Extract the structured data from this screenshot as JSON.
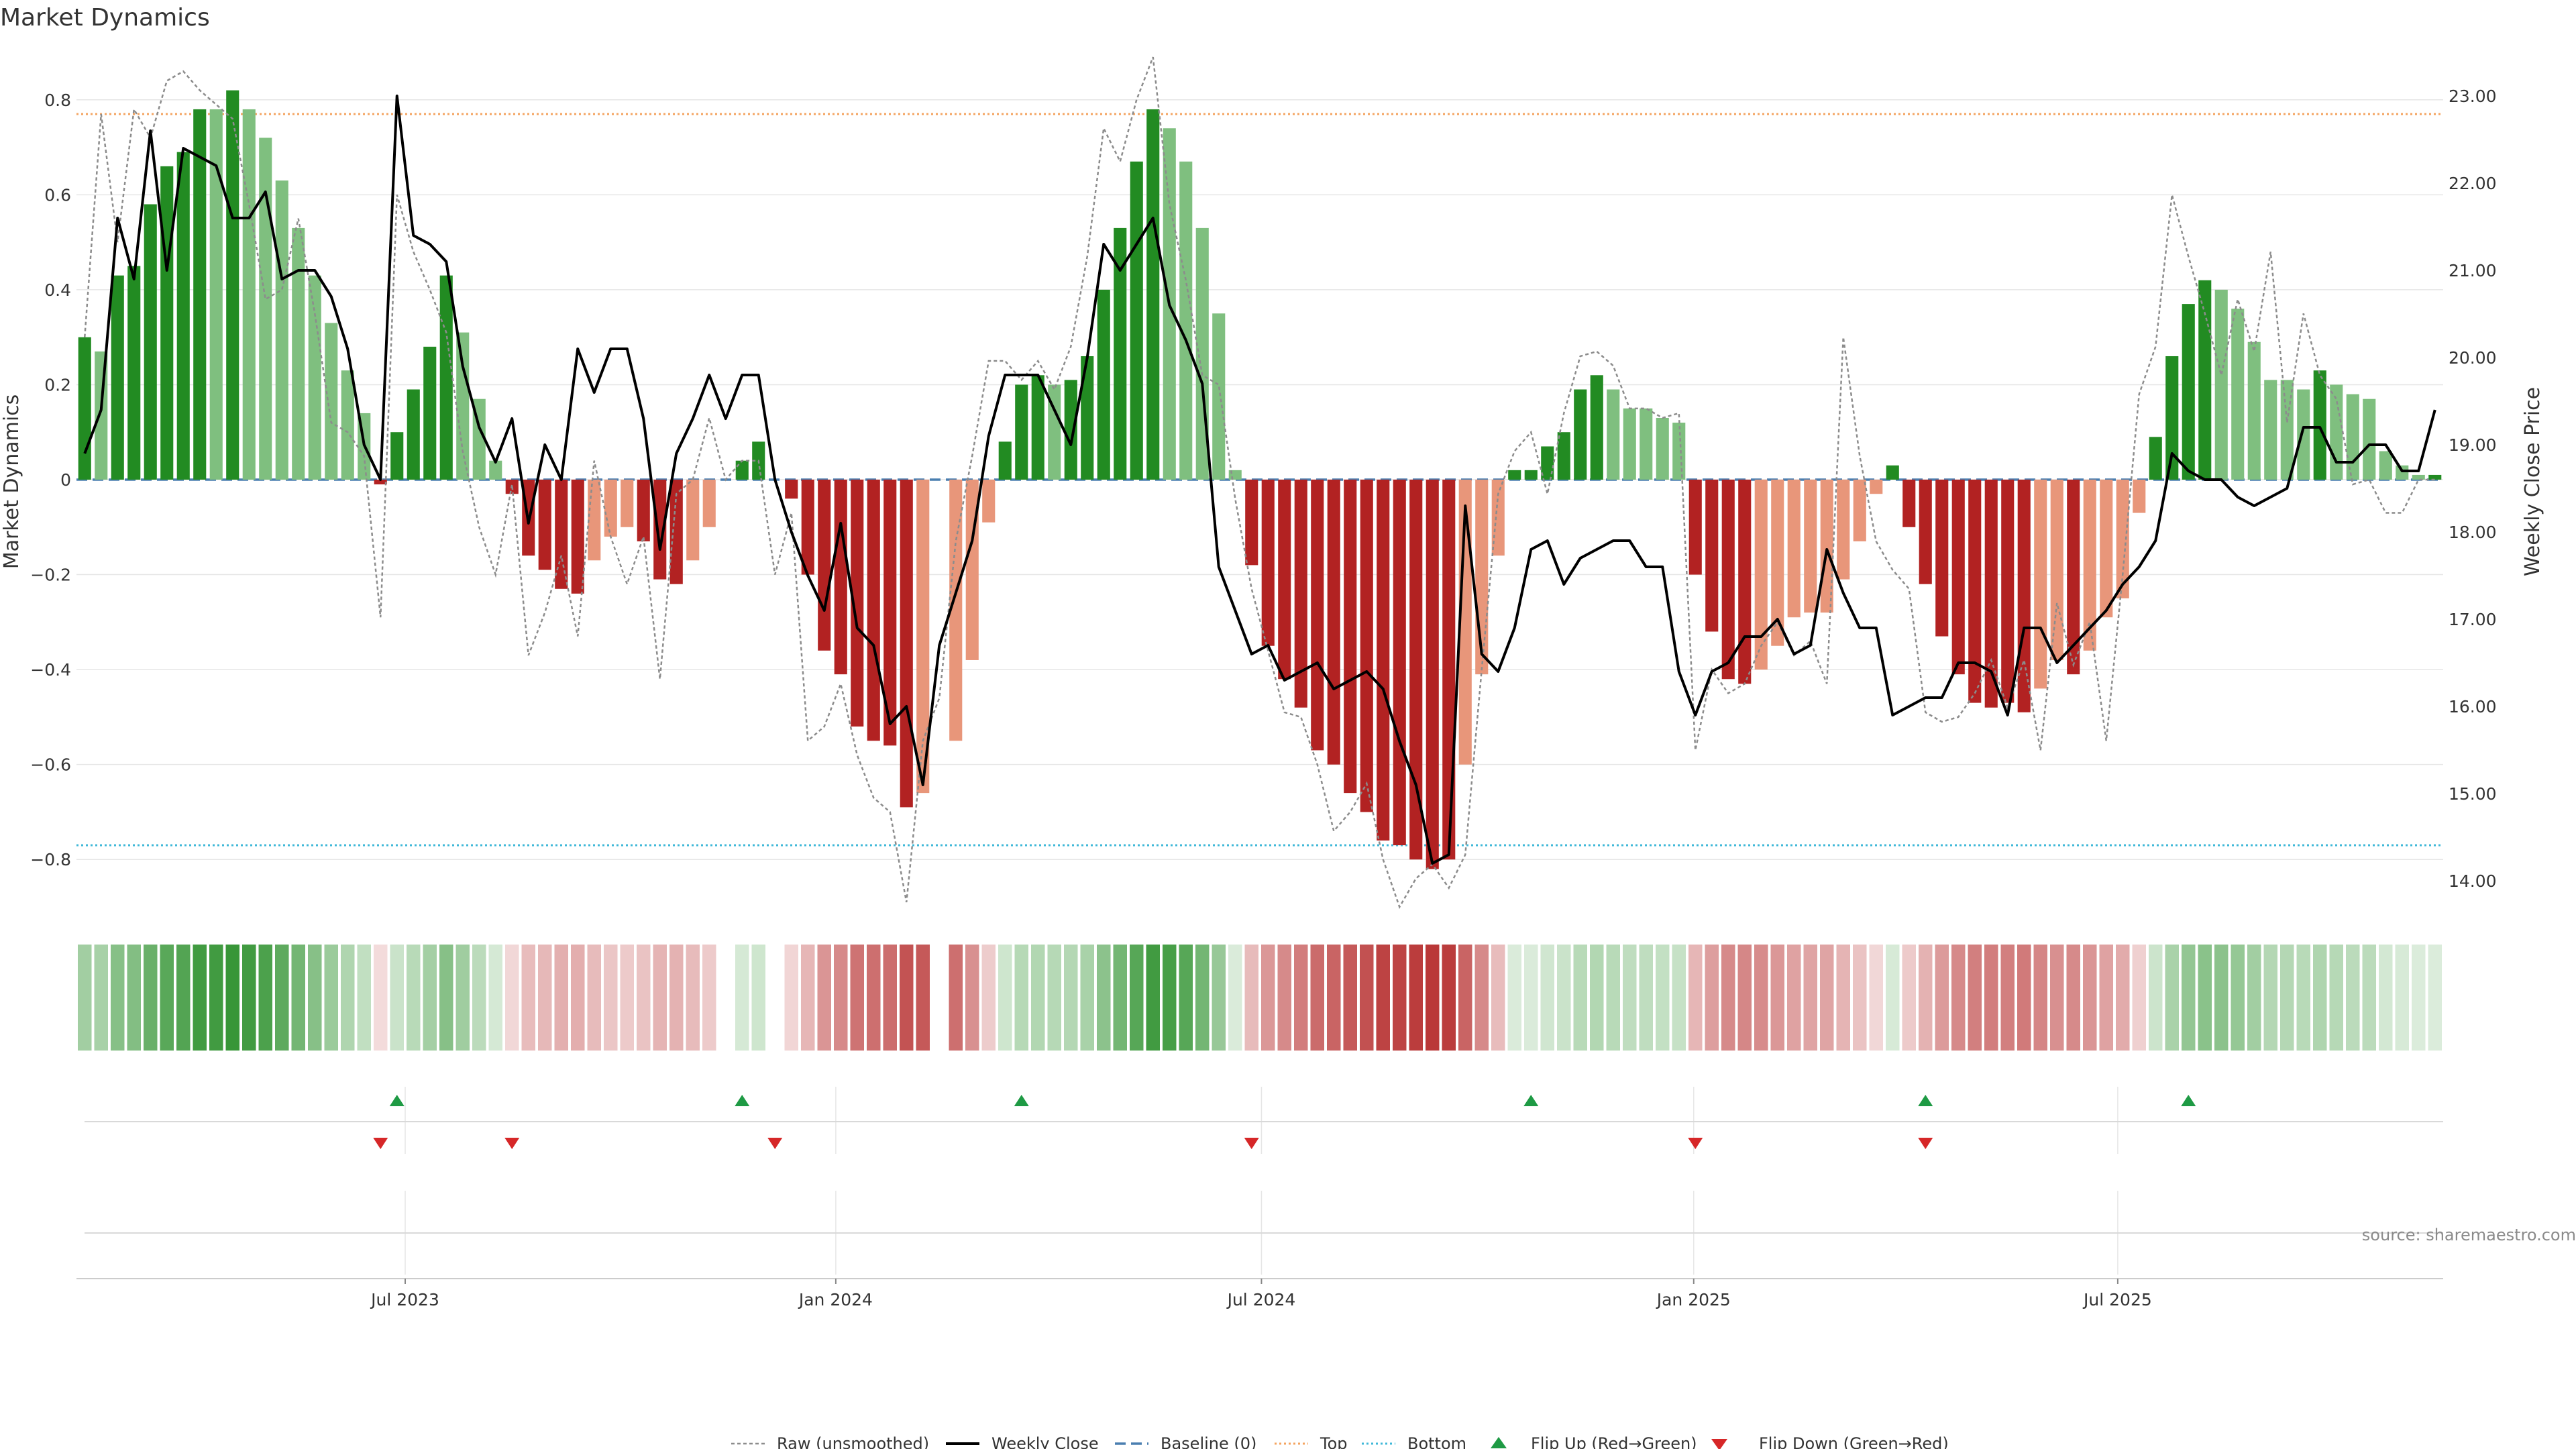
{
  "colors": {
    "strong_green": "#228b22",
    "light_green": "#7fbf7f",
    "strong_red": "#b22222",
    "light_red": "#e8967a",
    "raw": "#8c8c8c",
    "close": "#000000",
    "baseline": "#4a7fb0",
    "top": "#f4a460",
    "bottom": "#40b8d8",
    "flip_up": "#1e9a44",
    "flip_down": "#d62728",
    "grid": "#e6e6e6"
  },
  "chart_data": {
    "type": "bar",
    "title": "Market Dynamics",
    "ylabel_left": "Market Dynamics",
    "ylabel_right": "Weekly Close Price",
    "source": "source: sharemaestro.com",
    "ylim_left": [
      -0.9,
      0.9
    ],
    "ylim_right": [
      13.7,
      23.5
    ],
    "yticks_left": [
      -0.8,
      -0.6,
      -0.4,
      -0.2,
      0,
      0.2,
      0.4,
      0.6,
      0.8
    ],
    "ytick_labels_left": [
      "−0.8",
      "−0.6",
      "−0.4",
      "−0.2",
      "0",
      "0.2",
      "0.4",
      "0.6",
      "0.8"
    ],
    "yticks_right": [
      14,
      15,
      16,
      17,
      18,
      19,
      20,
      21,
      22,
      23
    ],
    "ytick_labels_right": [
      "14.00",
      "15.00",
      "16.00",
      "17.00",
      "18.00",
      "19.00",
      "20.00",
      "21.00",
      "22.00",
      "23.00"
    ],
    "x_ticks": [
      {
        "week": 19.5,
        "label": "Jul 2023"
      },
      {
        "week": 45.7,
        "label": "Jan 2024"
      },
      {
        "week": 71.6,
        "label": "Jul 2024"
      },
      {
        "week": 97.9,
        "label": "Jan 2025"
      },
      {
        "week": 123.7,
        "label": "Jul 2025"
      }
    ],
    "top_line": 0.77,
    "bottom_line": -0.77,
    "baseline": 0,
    "weeks": 144,
    "dynamics": [
      0.3,
      0.27,
      0.43,
      0.45,
      0.58,
      0.66,
      0.69,
      0.78,
      0.78,
      0.82,
      0.78,
      0.72,
      0.63,
      0.53,
      0.43,
      0.33,
      0.23,
      0.14,
      -0.01,
      0.1,
      0.19,
      0.28,
      0.43,
      0.31,
      0.17,
      0.04,
      -0.03,
      -0.16,
      -0.19,
      -0.23,
      -0.24,
      -0.17,
      -0.12,
      -0.1,
      -0.13,
      -0.21,
      -0.22,
      -0.17,
      -0.1,
      0.0,
      0.04,
      0.08,
      0.0,
      -0.04,
      -0.2,
      -0.36,
      -0.41,
      -0.52,
      -0.55,
      -0.56,
      -0.69,
      -0.66,
      0.0,
      -0.55,
      -0.38,
      -0.09,
      0.08,
      0.2,
      0.22,
      0.2,
      0.21,
      0.26,
      0.4,
      0.53,
      0.67,
      0.78,
      0.74,
      0.67,
      0.53,
      0.35,
      0.02,
      -0.18,
      -0.35,
      -0.42,
      -0.48,
      -0.57,
      -0.6,
      -0.66,
      -0.7,
      -0.76,
      -0.77,
      -0.8,
      -0.82,
      -0.8,
      -0.6,
      -0.41,
      -0.16,
      0.02,
      0.02,
      0.07,
      0.1,
      0.19,
      0.22,
      0.19,
      0.15,
      0.15,
      0.13,
      0.12,
      -0.2,
      -0.32,
      -0.42,
      -0.43,
      -0.4,
      -0.35,
      -0.29,
      -0.28,
      -0.28,
      -0.21,
      -0.13,
      -0.03,
      0.03,
      -0.1,
      -0.22,
      -0.33,
      -0.41,
      -0.47,
      -0.48,
      -0.47,
      -0.49,
      -0.44,
      -0.38,
      -0.41,
      -0.36,
      -0.29,
      -0.25,
      -0.07,
      0.09,
      0.26,
      0.37,
      0.42,
      0.4,
      0.36,
      0.29,
      0.21,
      0.21,
      0.19,
      0.23,
      0.2,
      0.18,
      0.17,
      0.06,
      0.03,
      0.01,
      0.01
    ],
    "strength": [
      "strong",
      "light",
      "strong",
      "strong",
      "strong",
      "strong",
      "strong",
      "strong",
      "light",
      "strong",
      "light",
      "light",
      "light",
      "light",
      "light",
      "light",
      "light",
      "light",
      "strong",
      "strong",
      "strong",
      "strong",
      "strong",
      "light",
      "light",
      "light",
      "strong",
      "strong",
      "strong",
      "strong",
      "strong",
      "light",
      "light",
      "light",
      "strong",
      "strong",
      "strong",
      "light",
      "light",
      "light",
      "strong",
      "strong",
      "light",
      "strong",
      "strong",
      "strong",
      "strong",
      "strong",
      "strong",
      "strong",
      "strong",
      "light",
      "light",
      "light",
      "light",
      "light",
      "strong",
      "strong",
      "strong",
      "light",
      "strong",
      "strong",
      "strong",
      "strong",
      "strong",
      "strong",
      "light",
      "light",
      "light",
      "light",
      "light",
      "strong",
      "strong",
      "strong",
      "strong",
      "strong",
      "strong",
      "strong",
      "strong",
      "strong",
      "strong",
      "strong",
      "strong",
      "strong",
      "light",
      "light",
      "light",
      "strong",
      "strong",
      "strong",
      "strong",
      "strong",
      "strong",
      "light",
      "light",
      "light",
      "light",
      "light",
      "strong",
      "strong",
      "strong",
      "strong",
      "light",
      "light",
      "light",
      "light",
      "light",
      "light",
      "light",
      "light",
      "strong",
      "strong",
      "strong",
      "strong",
      "strong",
      "strong",
      "strong",
      "strong",
      "strong",
      "light",
      "light",
      "strong",
      "light",
      "light",
      "light",
      "light",
      "strong",
      "strong",
      "strong",
      "strong",
      "light",
      "light",
      "light",
      "light",
      "light",
      "light",
      "strong",
      "light",
      "light",
      "light",
      "light",
      "light",
      "light",
      "strong"
    ],
    "raw": [
      0.3,
      0.77,
      0.5,
      0.78,
      0.72,
      0.84,
      0.86,
      0.82,
      0.79,
      0.76,
      0.58,
      0.38,
      0.4,
      0.55,
      0.35,
      0.12,
      0.1,
      0.05,
      -0.29,
      0.6,
      0.48,
      0.4,
      0.31,
      0.06,
      -0.1,
      -0.2,
      -0.01,
      -0.37,
      -0.28,
      -0.16,
      -0.33,
      0.04,
      -0.12,
      -0.22,
      -0.12,
      -0.42,
      -0.03,
      0.0,
      0.13,
      0.0,
      0.04,
      0.04,
      -0.2,
      -0.07,
      -0.55,
      -0.52,
      -0.43,
      -0.58,
      -0.67,
      -0.7,
      -0.89,
      -0.55,
      -0.46,
      -0.13,
      0.05,
      0.25,
      0.25,
      0.21,
      0.25,
      0.19,
      0.28,
      0.47,
      0.74,
      0.67,
      0.8,
      0.89,
      0.58,
      0.42,
      0.22,
      0.2,
      -0.04,
      -0.23,
      -0.36,
      -0.49,
      -0.5,
      -0.6,
      -0.74,
      -0.7,
      -0.64,
      -0.8,
      -0.9,
      -0.84,
      -0.81,
      -0.86,
      -0.79,
      -0.4,
      -0.03,
      0.06,
      0.1,
      -0.03,
      0.14,
      0.26,
      0.27,
      0.24,
      0.15,
      0.15,
      0.13,
      0.14,
      -0.57,
      -0.4,
      -0.45,
      -0.43,
      -0.35,
      -0.3,
      -0.37,
      -0.34,
      -0.43,
      0.3,
      0.05,
      -0.13,
      -0.19,
      -0.23,
      -0.49,
      -0.51,
      -0.5,
      -0.45,
      -0.38,
      -0.48,
      -0.38,
      -0.57,
      -0.26,
      -0.39,
      -0.3,
      -0.55,
      -0.2,
      0.18,
      0.28,
      0.6,
      0.47,
      0.35,
      0.22,
      0.38,
      0.27,
      0.48,
      0.12,
      0.35,
      0.22,
      0.17,
      -0.01,
      0.0,
      -0.07,
      -0.07,
      0.0,
      0.0
    ],
    "weekly_close": [
      18.9,
      19.4,
      21.6,
      20.9,
      22.6,
      21.0,
      22.4,
      22.3,
      22.2,
      21.6,
      21.6,
      21.9,
      20.9,
      21.0,
      21.0,
      20.7,
      20.1,
      19.0,
      18.6,
      23.0,
      21.4,
      21.3,
      21.1,
      19.9,
      19.2,
      18.8,
      19.3,
      18.1,
      19.0,
      18.6,
      20.1,
      19.6,
      20.1,
      20.1,
      19.3,
      17.8,
      18.9,
      19.3,
      19.8,
      19.3,
      19.8,
      19.8,
      18.6,
      18.0,
      17.5,
      17.1,
      18.1,
      16.9,
      16.7,
      15.8,
      16.0,
      15.1,
      16.7,
      17.3,
      17.9,
      19.1,
      19.8,
      19.8,
      19.8,
      19.4,
      19.0,
      20.0,
      21.3,
      21.0,
      21.3,
      21.6,
      20.6,
      20.2,
      19.7,
      17.6,
      17.1,
      16.6,
      16.7,
      16.3,
      16.4,
      16.5,
      16.2,
      16.3,
      16.4,
      16.2,
      15.6,
      15.1,
      14.2,
      14.3,
      18.3,
      16.6,
      16.4,
      16.9,
      17.8,
      17.9,
      17.4,
      17.7,
      17.8,
      17.9,
      17.9,
      17.6,
      17.6,
      16.4,
      15.9,
      16.4,
      16.5,
      16.8,
      16.8,
      17.0,
      16.6,
      16.7,
      17.8,
      17.3,
      16.9,
      16.9,
      15.9,
      16.0,
      16.1,
      16.1,
      16.5,
      16.5,
      16.4,
      15.9,
      16.9,
      16.9,
      16.5,
      16.7,
      16.9,
      17.1,
      17.4,
      17.6,
      17.9,
      18.9,
      18.7,
      18.6,
      18.6,
      18.4,
      18.3,
      18.4,
      18.5,
      19.2,
      19.2,
      18.8,
      18.8,
      19.0,
      19.0,
      18.7,
      18.7,
      19.4
    ],
    "flips_up": [
      19,
      40,
      57,
      88,
      112,
      128
    ],
    "flips_down": [
      18,
      26,
      42,
      71,
      98,
      112
    ]
  },
  "legend": {
    "raw": "Raw (unsmoothed)",
    "close": "Weekly Close",
    "baseline": "Baseline (0)",
    "top": "Top",
    "bottom": "Bottom",
    "flip_up": "Flip Up (Red→Green)",
    "flip_down": "Flip Down (Green→Red)"
  }
}
